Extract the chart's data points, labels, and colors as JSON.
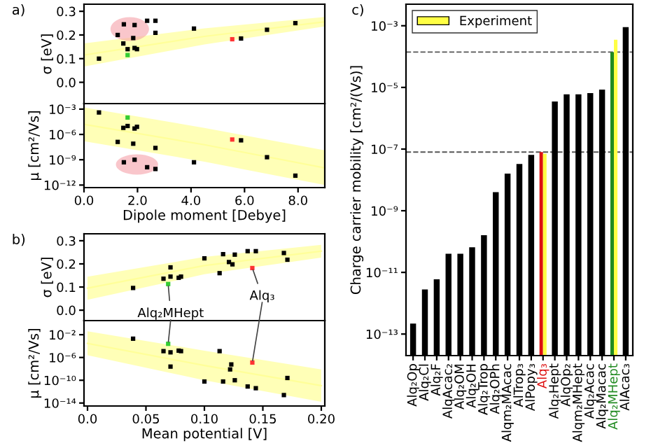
{
  "chart_data": [
    {
      "type": "scatter",
      "title": "a)",
      "ylabel": "σ [eV]",
      "xlim": [
        0,
        9
      ],
      "ylim": [
        -0.09,
        0.33
      ],
      "tick_labels": "y",
      "yticks": [
        {
          "value": 0,
          "label": "0.0"
        },
        0.1,
        0.2,
        0.3
      ],
      "series": [
        {
          "type": "line",
          "color": "#ffff99",
          "x": [
            0,
            4.5,
            9
          ],
          "lower": [
            0.067,
            0.16,
            0.236
          ],
          "upper": [
            0.164,
            0.228,
            0.276
          ],
          "values": [
            0.115,
            0.194,
            0.256
          ]
        },
        {
          "type": "scatter",
          "marker": "square",
          "x": [
            0.56,
            1.26,
            1.49,
            1.47,
            1.63,
            1.63,
            1.84,
            1.89,
            1.89,
            1.98,
            2.36,
            2.67,
            2.67,
            4.11,
            5.54,
            5.87,
            6.84,
            7.9
          ],
          "values": [
            0.1,
            0.2,
            0.245,
            0.164,
            0.14,
            0.115,
            0.187,
            0.242,
            0.145,
            0.14,
            0.26,
            0.26,
            0.209,
            0.227,
            0.182,
            0.185,
            0.222,
            0.25
          ],
          "colors": [
            "#000000",
            "#000000",
            "#000000",
            "#000000",
            "#000000",
            "#33cc33",
            "#000000",
            "#000000",
            "#000000",
            "#000000",
            "#000000",
            "#000000",
            "#000000",
            "#000000",
            "#ff3333",
            "#000000",
            "#000000",
            "#000000"
          ]
        }
      ]
    },
    {
      "type": "scatter",
      "ylabel": "μ [cm²/Vs]",
      "xlabel": "Dipole moment [Debye]",
      "log": "y",
      "xlim": [
        0,
        9
      ],
      "ylim": [
        5e-13,
        0.0045
      ],
      "xticks": [
        {
          "value": 0,
          "label": "0.0"
        },
        {
          "value": 2,
          "label": "2.0"
        },
        {
          "value": 4,
          "label": "4.0"
        },
        {
          "value": 6,
          "label": "6.0"
        },
        {
          "value": 8,
          "label": "8.0"
        }
      ],
      "yticks": [
        {
          "value": 0.001,
          "label": "10⁻³"
        },
        {
          "value": 1e-06,
          "label": "10⁻⁶"
        },
        {
          "value": 1e-09,
          "label": "10⁻⁹"
        },
        {
          "value": 1e-12,
          "label": "10⁻¹²"
        }
      ],
      "series": [
        {
          "type": "line",
          "color": "#ffff99",
          "x": [
            0,
            4.5,
            9
          ],
          "lower": [
            1.6e-07,
            6e-10,
            1e-12
          ],
          "upper": [
            0.0016,
            6e-06,
            1.3e-08
          ],
          "values": [
            1.6e-05,
            6e-08,
            1.1e-10
          ]
        },
        {
          "type": "scatter",
          "marker": "square",
          "x": [
            0.56,
            1.63,
            1.47,
            1.63,
            1.89,
            1.98,
            1.26,
            1.84,
            2.67,
            5.54,
            5.87,
            6.84,
            7.9,
            1.49,
            1.89,
            2.36,
            2.67,
            4.11
          ],
          "values": [
            0.0004,
            0.0001,
            6e-06,
            1e-05,
            5e-06,
            8e-06,
            1.3e-07,
            8e-08,
            2.5e-08,
            2.5e-07,
            2e-07,
            2e-09,
            1.3e-11,
            5e-10,
            1e-09,
            1.3e-10,
            8e-11,
            5e-10
          ],
          "colors": [
            "#000000",
            "#33cc33",
            "#000000",
            "#000000",
            "#000000",
            "#000000",
            "#000000",
            "#000000",
            "#000000",
            "#ff3333",
            "#000000",
            "#000000",
            "#000000",
            "#000000",
            "#000000",
            "#000000",
            "#000000",
            "#000000"
          ]
        }
      ]
    },
    {
      "type": "scatter",
      "title": "b)",
      "ylabel": "σ [eV]",
      "xlim": [
        -0.003,
        0.203
      ],
      "ylim": [
        -0.045,
        0.33
      ],
      "tick_labels": "y",
      "yticks": [
        {
          "value": 0,
          "label": "0.0"
        },
        0.1,
        0.2,
        0.3
      ],
      "annotations": [
        {
          "text": "Alq₂MHept",
          "x": 0.069,
          "y": 0.113
        },
        {
          "text": "Alq₃",
          "x": 0.141,
          "y": 0.182
        }
      ],
      "series": [
        {
          "type": "line",
          "color": "#ffff99",
          "x": [
            0,
            0.1,
            0.2
          ],
          "lower": [
            0.045,
            0.155,
            0.227
          ],
          "upper": [
            0.145,
            0.23,
            0.282
          ],
          "values": [
            0.095,
            0.193,
            0.255
          ]
        },
        {
          "type": "scatter",
          "marker": "square",
          "x": [
            0.039,
            0.065,
            0.071,
            0.071,
            0.069,
            0.078,
            0.08,
            0.1,
            0.113,
            0.116,
            0.121,
            0.124,
            0.126,
            0.137,
            0.141,
            0.144,
            0.168,
            0.171
          ],
          "values": [
            0.096,
            0.136,
            0.185,
            0.145,
            0.113,
            0.14,
            0.145,
            0.224,
            0.16,
            0.242,
            0.208,
            0.198,
            0.24,
            0.255,
            0.182,
            0.255,
            0.247,
            0.218
          ],
          "colors": [
            "#000000",
            "#000000",
            "#000000",
            "#000000",
            "#33cc33",
            "#000000",
            "#000000",
            "#000000",
            "#000000",
            "#000000",
            "#000000",
            "#000000",
            "#000000",
            "#000000",
            "#ff3333",
            "#000000",
            "#000000",
            "#000000"
          ]
        }
      ]
    },
    {
      "type": "scatter",
      "ylabel": "μ [cm²/Vs]",
      "xlabel": "Mean potential [V]",
      "log": "y",
      "xlim": [
        -0.003,
        0.203
      ],
      "ylim": [
        3e-15,
        3
      ],
      "xticks": [
        {
          "value": 0,
          "label": "0.0"
        },
        0.05,
        {
          "value": 0.1,
          "label": "0.10"
        },
        0.15,
        {
          "value": 0.2,
          "label": "0.20"
        }
      ],
      "yticks": [
        {
          "value": 0.01,
          "label": "10⁻²"
        },
        {
          "value": 1e-06,
          "label": "10⁻⁶"
        },
        {
          "value": 1e-10,
          "label": "10⁻¹⁰"
        },
        {
          "value": 1e-14,
          "label": "10⁻¹⁴"
        }
      ],
      "series": [
        {
          "type": "line",
          "color": "#ffff99",
          "x": [
            0,
            0.1,
            0.2
          ],
          "lower": [
            2.5e-06,
            1e-10,
            1.6e-14
          ],
          "upper": [
            0.04,
            1.6e-05,
            8e-09
          ],
          "values": [
            0.0003,
            4e-08,
            1.1e-11
          ]
        },
        {
          "type": "scatter",
          "marker": "square",
          "x": [
            0.039,
            0.065,
            0.071,
            0.071,
            0.069,
            0.078,
            0.08,
            0.1,
            0.113,
            0.116,
            0.122,
            0.123,
            0.126,
            0.137,
            0.141,
            0.144,
            0.168,
            0.171
          ],
          "values": [
            0.002,
            1.3e-05,
            8e-06,
            2.5e-08,
            0.00025,
            1.6e-05,
            1.3e-05,
            6e-11,
            1.3e-05,
            6e-11,
            8e-09,
            6e-08,
            1e-10,
            8e-12,
            1.3e-07,
            4e-12,
            2.5e-13,
            2.5e-10
          ],
          "colors": [
            "#000000",
            "#000000",
            "#000000",
            "#000000",
            "#33cc33",
            "#000000",
            "#000000",
            "#000000",
            "#000000",
            "#000000",
            "#000000",
            "#000000",
            "#000000",
            "#000000",
            "#ff3333",
            "#000000",
            "#000000",
            "#000000"
          ]
        }
      ]
    },
    {
      "type": "bar",
      "title": "c)",
      "ylabel": "Charge carrier mobility [cm²/(Vs)]",
      "log": "y",
      "ylim": [
        2e-14,
        0.005
      ],
      "legend": "top left",
      "yticks": [
        {
          "value": 0.001,
          "label": "10⁻³"
        },
        {
          "value": 1e-05,
          "label": "10⁻⁵"
        },
        {
          "value": 1e-07,
          "label": "10⁻⁷"
        },
        {
          "value": 1e-09,
          "label": "10⁻⁹"
        },
        {
          "value": 1e-11,
          "label": "10⁻¹¹"
        },
        {
          "value": 1e-13,
          "label": "10⁻¹³"
        }
      ],
      "categories": [
        "Alq₂Op",
        "Alq₂Cl",
        "Alq₂F",
        "AlqAcac₂",
        "Alq₂OM",
        "Alq₂OH",
        "Alq₂Trop",
        "Alq₂OPh",
        "Alqm₂MAcac",
        "AlTrop₃",
        "AlPopy₃",
        "Alq₃",
        "Alq₂Hept",
        "AlqOp₂",
        "Alqm₂MHept",
        "Alq₂Acac",
        "Alq₂Macac",
        "Alq₂MHept",
        "AlAcac₃"
      ],
      "ref_lines": [
        {
          "axis": "y",
          "value": 0.00014,
          "line_style": "dashed",
          "color": "#555555"
        },
        {
          "axis": "y",
          "value": 8e-08,
          "line_style": "dashed",
          "color": "#555555"
        }
      ],
      "series": [
        {
          "values": [
            2.2e-13,
            2.8e-12,
            6e-12,
            4e-11,
            4e-11,
            6.5e-11,
            1.6e-10,
            4e-09,
            1.6e-08,
            3.3e-08,
            6.5e-08,
            8e-08,
            3.5e-06,
            6e-06,
            6e-06,
            6.5e-06,
            8.5e-06,
            0.00014,
            0.0009
          ],
          "colors": [
            "#000000",
            "#000000",
            "#000000",
            "#000000",
            "#000000",
            "#000000",
            "#000000",
            "#000000",
            "#000000",
            "#000000",
            "#000000",
            "#dd1111",
            "#000000",
            "#000000",
            "#000000",
            "#000000",
            "#000000",
            "#228b22",
            "#000000"
          ]
        },
        {
          "name": "Experiment",
          "color": "#ffff44",
          "values": [
            null,
            null,
            null,
            null,
            null,
            null,
            null,
            null,
            null,
            null,
            null,
            7e-08,
            null,
            null,
            null,
            null,
            null,
            0.00035,
            null
          ]
        }
      ]
    }
  ]
}
